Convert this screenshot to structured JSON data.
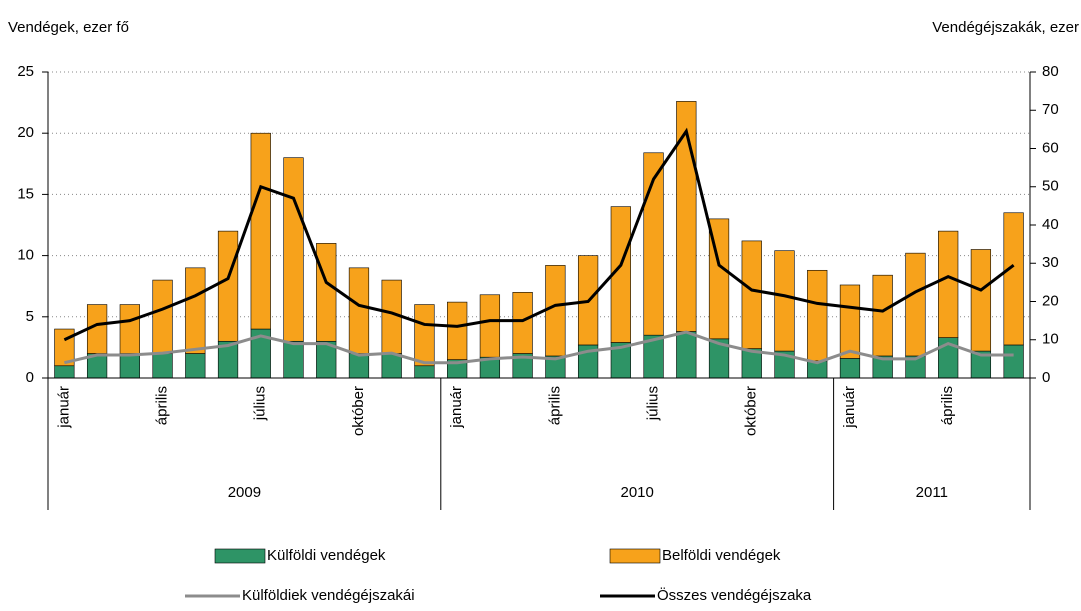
{
  "chart_data": {
    "type": "bar",
    "y_label": "Vendégek, ezer fő",
    "y2_label": "Vendégéjszakák, ezer",
    "categories": [
      "január",
      null,
      null,
      "április",
      null,
      null,
      "július",
      null,
      null,
      "október",
      null,
      null,
      "január",
      null,
      null,
      "április",
      null,
      null,
      "július",
      null,
      null,
      "október",
      null,
      null,
      "január",
      null,
      null,
      "április",
      null,
      null
    ],
    "groups": [
      "2009",
      "2010",
      "2011"
    ],
    "ylim": [
      0,
      25
    ],
    "yticks": [
      0,
      5,
      10,
      15,
      20,
      25
    ],
    "y2lim": [
      0,
      80
    ],
    "y2ticks": [
      0,
      10,
      20,
      30,
      40,
      50,
      60,
      70,
      80
    ],
    "grid": true,
    "series": [
      {
        "name": "Külföldi vendégek",
        "color": "#2e9466",
        "kind": "bar",
        "values": [
          1,
          2,
          2,
          2,
          2,
          3,
          4,
          3,
          3,
          2,
          2,
          1,
          1.5,
          1.7,
          2,
          1.8,
          2.7,
          2.9,
          3.5,
          3.8,
          3.2,
          2.4,
          2.2,
          1.4,
          1.6,
          1.8,
          1.8,
          3.3,
          2.2,
          2.7
        ]
      },
      {
        "name": "Belföldi vendégek",
        "color": "#f7a21b",
        "kind": "bar",
        "values": [
          3,
          4,
          4,
          6,
          7,
          9,
          16,
          15,
          8,
          7,
          6,
          5,
          4.7,
          5.1,
          5,
          7.4,
          7.3,
          11.1,
          14.9,
          18.8,
          9.8,
          8.8,
          8.2,
          7.4,
          6,
          6.6,
          8.4,
          8.7,
          8.3,
          10.8
        ]
      },
      {
        "name": "Külföldiek vendégéjszakái",
        "color": "#8c8c8c",
        "kind": "line",
        "axis": "y2",
        "values": [
          4,
          6,
          6,
          6.5,
          7.5,
          8.5,
          11,
          9,
          9,
          6,
          6.5,
          4,
          4,
          5,
          5.5,
          5,
          7,
          8,
          10,
          12,
          9,
          7,
          6,
          4,
          7,
          5,
          5,
          9,
          6,
          6
        ]
      },
      {
        "name": "Összes vendégéjszaka",
        "color": "#000000",
        "kind": "line",
        "axis": "y2",
        "values": [
          10,
          14,
          15,
          18,
          21.5,
          26,
          50,
          47,
          25,
          19,
          17,
          14,
          13.5,
          15,
          15,
          19,
          20,
          29.5,
          52,
          64.5,
          29.5,
          23,
          21.5,
          19.5,
          18.5,
          17.5,
          22.5,
          26.5,
          23,
          29.5
        ]
      }
    ]
  }
}
